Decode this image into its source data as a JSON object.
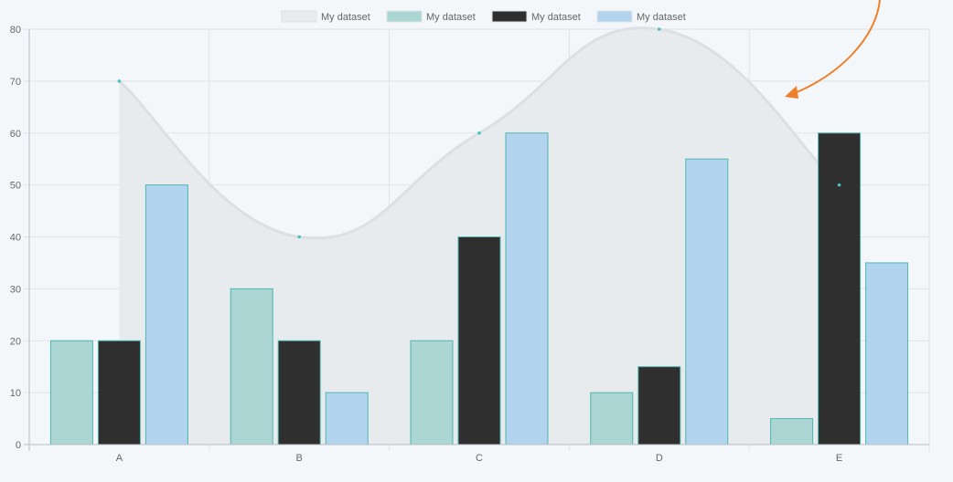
{
  "colors": {
    "background": "#f4f7fa",
    "grid": "#dfe3e7",
    "axis": "#b9bec3",
    "arrow": "#f07f2a"
  },
  "chart_data": {
    "type": "bar",
    "categories": [
      "A",
      "B",
      "C",
      "D",
      "E"
    ],
    "ylim": [
      0,
      80
    ],
    "yticks": [
      0,
      10,
      20,
      30,
      40,
      50,
      60,
      70,
      80
    ],
    "title": "",
    "xlabel": "",
    "ylabel": "",
    "grid": true,
    "legend_position": "top-center",
    "series": [
      {
        "name": "My dataset",
        "type": "area",
        "curve": "smooth",
        "values": [
          70,
          40,
          60,
          80,
          50
        ],
        "fill": "#e8ebee",
        "stroke": "#dde0e3",
        "point_color": "#4bc0c0"
      },
      {
        "name": "My dataset",
        "type": "bar",
        "values": [
          20,
          30,
          20,
          10,
          5
        ],
        "fill": "#acd6d3",
        "stroke": "#4bb7b0"
      },
      {
        "name": "My dataset",
        "type": "bar",
        "values": [
          20,
          20,
          40,
          15,
          60
        ],
        "fill": "#2f2f2f",
        "stroke": "#4bb7b0"
      },
      {
        "name": "My dataset",
        "type": "bar",
        "values": [
          50,
          10,
          60,
          55,
          35
        ],
        "fill": "#b3d4ee",
        "stroke": "#4bb7b0"
      }
    ]
  }
}
